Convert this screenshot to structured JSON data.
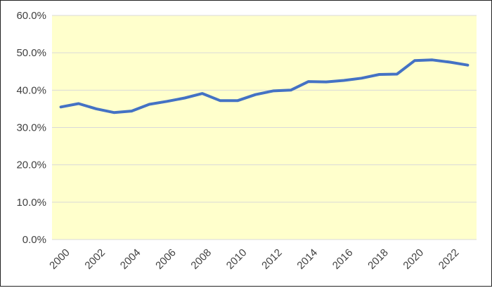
{
  "chart_data": {
    "type": "line",
    "title": "",
    "xlabel": "",
    "ylabel": "",
    "x": [
      2000,
      2001,
      2002,
      2003,
      2004,
      2005,
      2006,
      2007,
      2008,
      2009,
      2010,
      2011,
      2012,
      2013,
      2014,
      2015,
      2016,
      2017,
      2018,
      2019,
      2020,
      2021,
      2022,
      2023
    ],
    "series": [
      {
        "values": [
          35.5,
          36.4,
          35.0,
          34.0,
          34.4,
          36.2,
          37.0,
          37.9,
          39.1,
          37.2,
          37.2,
          38.8,
          39.8,
          40.0,
          42.3,
          42.2,
          42.6,
          43.2,
          44.2,
          44.3,
          47.9,
          48.1,
          47.5,
          46.7
        ]
      }
    ],
    "ylim": [
      0,
      60
    ],
    "y_ticks": [
      0,
      10,
      20,
      30,
      40,
      50,
      60
    ],
    "y_tick_labels": [
      "0.0%",
      "10.0%",
      "20.0%",
      "30.0%",
      "40.0%",
      "50.0%",
      "60.0%"
    ],
    "x_tick_labels": [
      "2000",
      "2002",
      "2004",
      "2006",
      "2008",
      "2010",
      "2012",
      "2014",
      "2016",
      "2018",
      "2020",
      "2022"
    ],
    "grid": true,
    "legend": "none",
    "colors": {
      "line": "#4472C4",
      "plot_background": "#FFFFCC",
      "gridline": "#D9D9D9",
      "axis_text": "#404040",
      "frame": "#222222"
    }
  }
}
